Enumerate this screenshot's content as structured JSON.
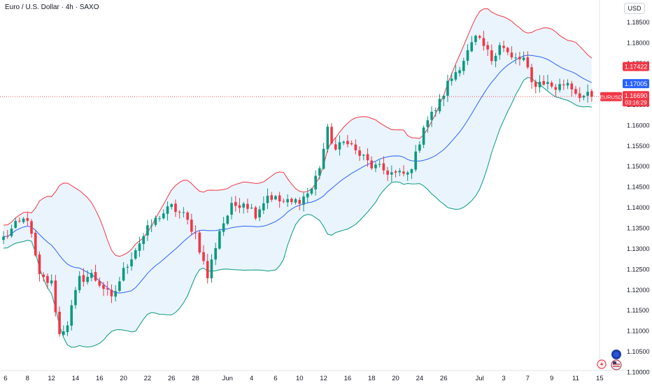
{
  "header": {
    "symbol_title": "Euro / U.S. Dollar · 4h · SAXO",
    "currency_button": "USD"
  },
  "chart_data": {
    "type": "candlestick",
    "title": "Euro / U.S. Dollar · 4h · SAXO",
    "indicator": "Bollinger Bands",
    "ylim": [
      1.1,
      1.188
    ],
    "y_ticks": [
      1.185,
      1.18,
      1.175,
      1.17,
      1.165,
      1.16,
      1.155,
      1.15,
      1.145,
      1.14,
      1.135,
      1.13,
      1.125,
      1.12,
      1.115,
      1.11,
      1.105,
      1.1
    ],
    "x_ticks": [
      "6",
      "8",
      "12",
      "14",
      "16",
      "20",
      "22",
      "26",
      "28",
      "Jun",
      "4",
      "6",
      "10",
      "12",
      "16",
      "18",
      "20",
      "24",
      "26",
      "Jul",
      "3",
      "7",
      "9",
      "11",
      "15"
    ],
    "x_tick_positions": [
      0.5,
      6,
      12,
      18,
      24,
      30,
      36,
      42,
      48,
      56,
      62,
      68,
      74,
      80,
      86,
      92,
      98,
      104,
      110,
      119,
      125,
      131,
      137,
      143,
      149
    ],
    "close_key": [
      [
        0,
        1.1325
      ],
      [
        3,
        1.1355
      ],
      [
        6,
        1.1375
      ],
      [
        9,
        1.123
      ],
      [
        12,
        1.1215
      ],
      [
        14,
        1.109
      ],
      [
        16,
        1.112
      ],
      [
        19,
        1.1225
      ],
      [
        22,
        1.1235
      ],
      [
        25,
        1.1205
      ],
      [
        27,
        1.1175
      ],
      [
        30,
        1.1245
      ],
      [
        33,
        1.13
      ],
      [
        36,
        1.1345
      ],
      [
        39,
        1.138
      ],
      [
        42,
        1.14
      ],
      [
        45,
        1.138
      ],
      [
        48,
        1.1335
      ],
      [
        51,
        1.123
      ],
      [
        54,
        1.1345
      ],
      [
        57,
        1.14
      ],
      [
        60,
        1.1415
      ],
      [
        63,
        1.1385
      ],
      [
        66,
        1.143
      ],
      [
        69,
        1.1415
      ],
      [
        72,
        1.141
      ],
      [
        75,
        1.1425
      ],
      [
        77,
        1.1445
      ],
      [
        79,
        1.15
      ],
      [
        81,
        1.1585
      ],
      [
        83,
        1.154
      ],
      [
        86,
        1.1565
      ],
      [
        88,
        1.1535
      ],
      [
        90,
        1.152
      ],
      [
        92,
        1.15
      ],
      [
        95,
        1.149
      ],
      [
        98,
        1.148
      ],
      [
        101,
        1.148
      ],
      [
        103,
        1.1525
      ],
      [
        105,
        1.16
      ],
      [
        107,
        1.1625
      ],
      [
        109,
        1.1655
      ],
      [
        111,
        1.17
      ],
      [
        113,
        1.173
      ],
      [
        115,
        1.176
      ],
      [
        118,
        1.181
      ],
      [
        120,
        1.179
      ],
      [
        122,
        1.176
      ],
      [
        124,
        1.18
      ],
      [
        127,
        1.176
      ],
      [
        130,
        1.176
      ],
      [
        132,
        1.17
      ],
      [
        135,
        1.1705
      ],
      [
        138,
        1.169
      ],
      [
        141,
        1.1705
      ],
      [
        143,
        1.168
      ],
      [
        145,
        1.167
      ],
      [
        147,
        1.1669
      ]
    ],
    "last_candle_index": 147,
    "last_price": {
      "value": 1.1669,
      "label": "EURUSD",
      "value_text": "1.16690",
      "countdown": "03:16:29",
      "color": "#f23645"
    },
    "band_labels": [
      {
        "value": 1.17422,
        "text": "1.17422",
        "color": "#f23645",
        "name": "upper-band-label"
      },
      {
        "value": 1.17005,
        "text": "1.17005",
        "color": "#2962ff",
        "name": "basis-label"
      },
      {
        "value": 1.16588,
        "text": "1.16588",
        "color": "#089981",
        "name": "lower-band-label"
      }
    ],
    "colors": {
      "up": "#089981",
      "down": "#f23645",
      "upper_band": "#f23645",
      "basis": "#2962ff",
      "lower_band": "#089981",
      "band_fill": "#e3f0fb",
      "axis_text": "#131722"
    },
    "grid": false,
    "legend": "none"
  }
}
